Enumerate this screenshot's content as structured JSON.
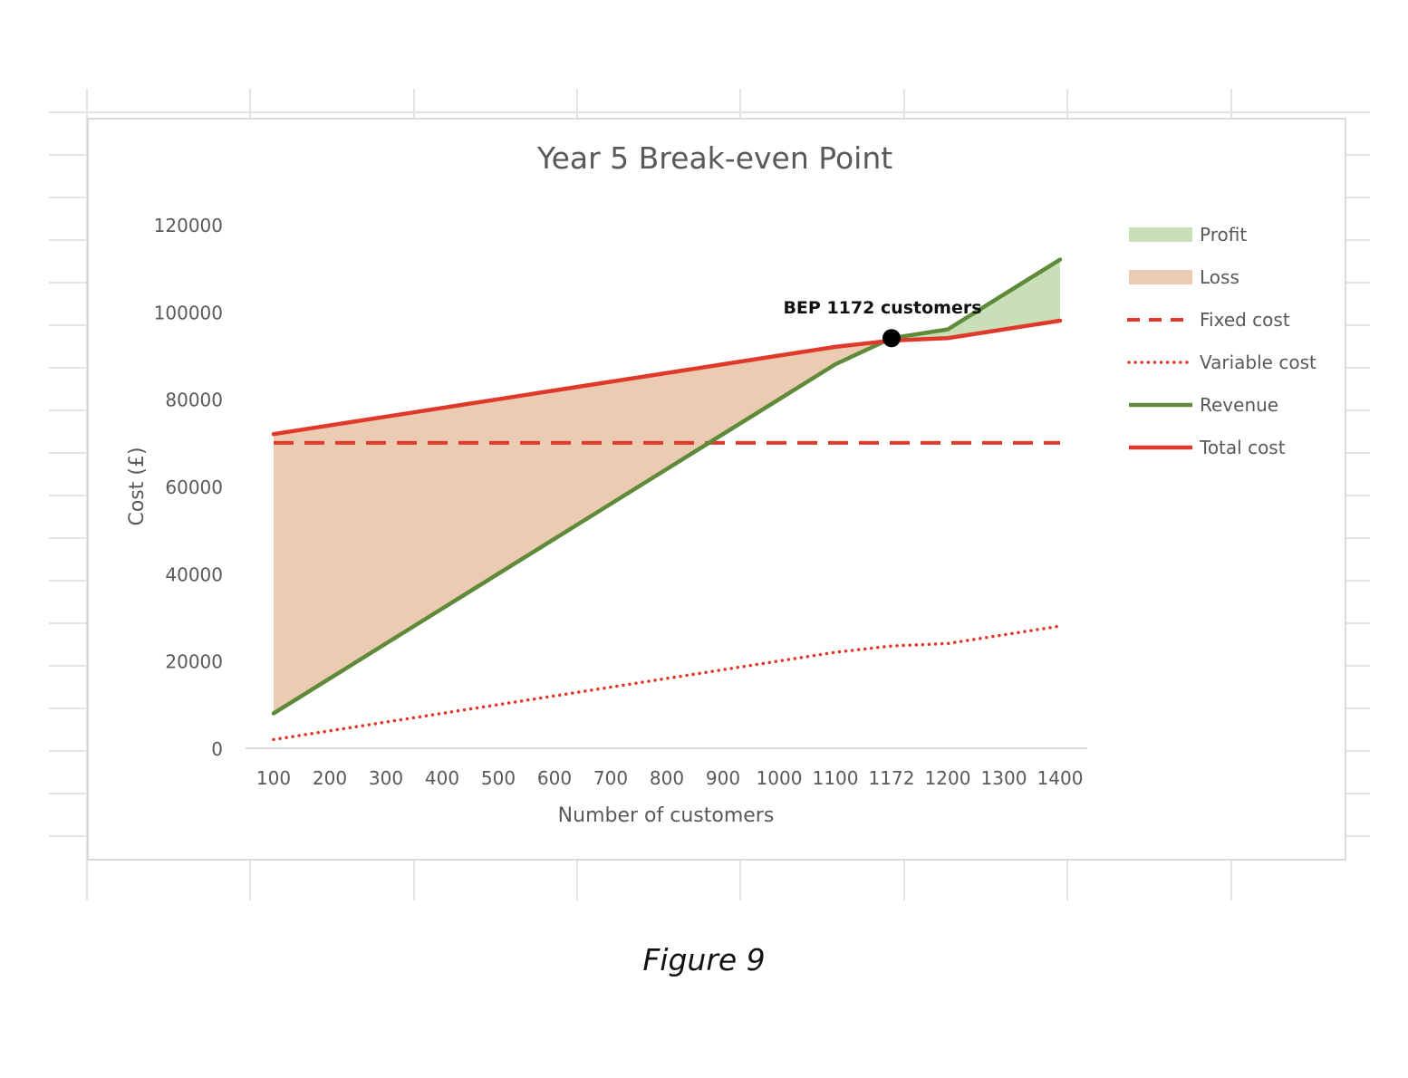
{
  "figure_caption": "Figure 9",
  "chart_data": {
    "type": "line",
    "title": "Year 5 Break-even Point",
    "xlabel": "Number of customers",
    "ylabel": "Cost (£)",
    "categories": [
      "100",
      "200",
      "300",
      "400",
      "500",
      "600",
      "700",
      "800",
      "900",
      "1000",
      "1100",
      "1172",
      "1200",
      "1300",
      "1400"
    ],
    "ylim": [
      0,
      120000
    ],
    "yticks": [
      "0",
      "20000",
      "40000",
      "60000",
      "80000",
      "100000",
      "120000"
    ],
    "grid": false,
    "legend_position": "right",
    "series": [
      {
        "name": "Profit",
        "kind": "area",
        "color": "#c9dfb8",
        "values": [
          null,
          null,
          null,
          null,
          null,
          null,
          null,
          null,
          null,
          null,
          null,
          94000,
          96000,
          104000,
          112000
        ]
      },
      {
        "name": "Loss",
        "kind": "area",
        "color": "#ebcbb1",
        "values": [
          72000,
          74000,
          76000,
          78000,
          80000,
          82000,
          84000,
          86000,
          88000,
          90000,
          92000,
          94000,
          null,
          null,
          null
        ]
      },
      {
        "name": "Fixed cost",
        "kind": "line",
        "style": "dashed",
        "color": "#e0392b",
        "values": [
          70000,
          70000,
          70000,
          70000,
          70000,
          70000,
          70000,
          70000,
          70000,
          70000,
          70000,
          70000,
          70000,
          70000,
          70000
        ]
      },
      {
        "name": "Variable cost",
        "kind": "line",
        "style": "dotted",
        "color": "#e0392b",
        "values": [
          2000,
          4000,
          6000,
          8000,
          10000,
          12000,
          14000,
          16000,
          18000,
          20000,
          22000,
          23440,
          24000,
          26000,
          28000
        ]
      },
      {
        "name": "Revenue",
        "kind": "line",
        "style": "solid",
        "color": "#5e8a3a",
        "values": [
          8000,
          16000,
          24000,
          32000,
          40000,
          48000,
          56000,
          64000,
          72000,
          80000,
          88000,
          94000,
          96000,
          104000,
          112000
        ]
      },
      {
        "name": "Total cost",
        "kind": "line",
        "style": "solid",
        "color": "#e0392b",
        "values": [
          72000,
          74000,
          76000,
          78000,
          80000,
          82000,
          84000,
          86000,
          88000,
          90000,
          92000,
          93440,
          94000,
          96000,
          98000
        ]
      }
    ],
    "annotations": [
      {
        "text": "BEP 1172 customers",
        "x": "1172",
        "y": 94000
      }
    ]
  }
}
